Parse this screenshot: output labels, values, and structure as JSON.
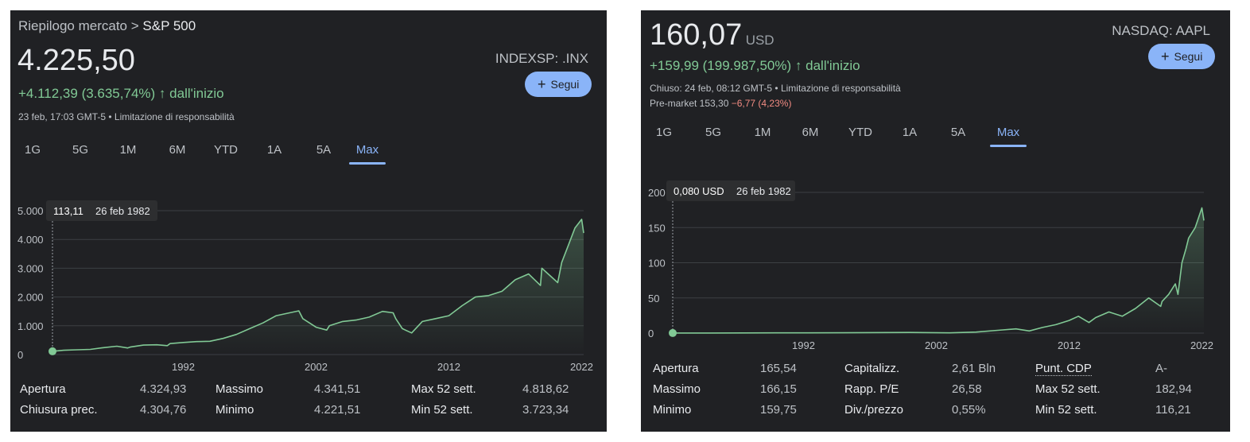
{
  "left": {
    "breadcrumb_prefix": "Riepilogo mercato >",
    "breadcrumb_current": "S&P 500",
    "price": "4.225,50",
    "ticker": "INDEXSP: .INX",
    "change": "+4.112,39 (3.635,74%)",
    "change_arrow": "↑",
    "change_suffix": "dall'inizio",
    "meta": "23 feb, 17:03 GMT-5 • Limitazione di responsabilità",
    "follow_label": "Segui",
    "tabs": [
      "1G",
      "5G",
      "1M",
      "6M",
      "YTD",
      "1A",
      "5A",
      "Max"
    ],
    "active_tab": "Max",
    "tooltip_value": "113,11",
    "tooltip_date": "26 feb 1982",
    "stats": [
      {
        "label": "Apertura",
        "value": "4.324,93",
        "label2": "Massimo",
        "value2": "4.341,51",
        "label3": "Max 52 sett.",
        "value3": "4.818,62"
      },
      {
        "label": "Chiusura prec.",
        "value": "4.304,76",
        "label2": "Minimo",
        "value2": "4.221,51",
        "label3": "Min 52 sett.",
        "value3": "3.723,34"
      }
    ]
  },
  "right": {
    "price": "160,07",
    "currency": "USD",
    "ticker": "NASDAQ: AAPL",
    "change": "+159,99 (199.987,50%)",
    "change_arrow": "↑",
    "change_suffix": "dall'inizio",
    "meta": "Chiuso: 24 feb, 08:12 GMT-5 • Limitazione di responsabilità",
    "premarket_label": "Pre-market 153,30",
    "premarket_change": "−6,77 (4,23%)",
    "follow_label": "Segui",
    "tabs": [
      "1G",
      "5G",
      "1M",
      "6M",
      "YTD",
      "1A",
      "5A",
      "Max"
    ],
    "active_tab": "Max",
    "tooltip_value": "0,080 USD",
    "tooltip_date": "26 feb 1982",
    "stats": [
      {
        "label": "Apertura",
        "value": "165,54",
        "label2": "Capitalizz.",
        "value2": "2,61 Bln",
        "label3": "Punt. CDP",
        "value3": "A-"
      },
      {
        "label": "Massimo",
        "value": "166,15",
        "label2": "Rapp. P/E",
        "value2": "26,58",
        "label3": "Max 52 sett.",
        "value3": "182,94"
      },
      {
        "label": "Minimo",
        "value": "159,75",
        "label2": "Div./prezzo",
        "value2": "0,55%",
        "label3": "Min 52 sett.",
        "value3": "116,21"
      }
    ]
  },
  "colors": {
    "line": "#81c995",
    "accent": "#8ab4f8",
    "negative": "#f28b82",
    "background": "#202124"
  },
  "chart_data": [
    {
      "type": "area",
      "ylim": [
        0,
        5000
      ],
      "y_ticks": [
        0,
        1000,
        2000,
        3000,
        4000,
        5000
      ],
      "y_tick_labels": [
        "0",
        "1.000",
        "2.000",
        "3.000",
        "4.000",
        "5.000"
      ],
      "x_ticks": [
        1992,
        2002,
        2012,
        2022
      ],
      "xlim": [
        1982.15,
        2022.15
      ],
      "grid": true,
      "series": [
        {
          "x": [
            1982.15,
            1983,
            1984,
            1985,
            1986,
            1987,
            1987.8,
            1988,
            1989,
            1990,
            1990.8,
            1991,
            1992,
            1993,
            1994,
            1995,
            1996,
            1997,
            1998,
            1999,
            2000,
            2000.7,
            2001,
            2002,
            2002.8,
            2003,
            2004,
            2005,
            2006,
            2007,
            2007.8,
            2008,
            2008.5,
            2009.2,
            2010,
            2011,
            2012,
            2013,
            2014,
            2015,
            2016,
            2017,
            2018,
            2018.9,
            2019,
            2020.2,
            2020.5,
            2021,
            2021.5,
            2022,
            2022.15
          ],
          "y": [
            113,
            150,
            165,
            180,
            240,
            290,
            230,
            260,
            330,
            340,
            310,
            380,
            420,
            450,
            460,
            560,
            700,
            900,
            1100,
            1350,
            1450,
            1520,
            1250,
            950,
            850,
            1000,
            1150,
            1200,
            1300,
            1500,
            1450,
            1250,
            900,
            750,
            1150,
            1250,
            1350,
            1700,
            2000,
            2050,
            2200,
            2600,
            2800,
            2400,
            3000,
            2500,
            3200,
            3800,
            4400,
            4700,
            4225
          ]
        }
      ]
    },
    {
      "type": "area",
      "ylim": [
        0,
        200
      ],
      "y_ticks": [
        0,
        50,
        100,
        150,
        200
      ],
      "y_tick_labels": [
        "0",
        "50",
        "100",
        "150",
        "200"
      ],
      "x_ticks": [
        1992,
        2002,
        2012,
        2022
      ],
      "xlim": [
        1982.15,
        2022.15
      ],
      "grid": true,
      "series": [
        {
          "x": [
            1982.15,
            1985,
            1990,
            1995,
            2000,
            2003,
            2005,
            2007,
            2008,
            2009,
            2010,
            2011,
            2012,
            2012.7,
            2013.5,
            2014,
            2015,
            2016,
            2017,
            2018,
            2018.9,
            2019,
            2019.5,
            2020,
            2020.2,
            2020.5,
            2020.8,
            2021,
            2021.5,
            2022,
            2022.15
          ],
          "y": [
            0.08,
            0.1,
            0.3,
            0.4,
            0.9,
            0.3,
            1.5,
            4.5,
            6,
            3,
            8,
            12,
            18,
            24,
            15,
            22,
            30,
            24,
            35,
            50,
            38,
            45,
            55,
            70,
            55,
            100,
            120,
            135,
            150,
            178,
            160
          ]
        }
      ]
    }
  ]
}
